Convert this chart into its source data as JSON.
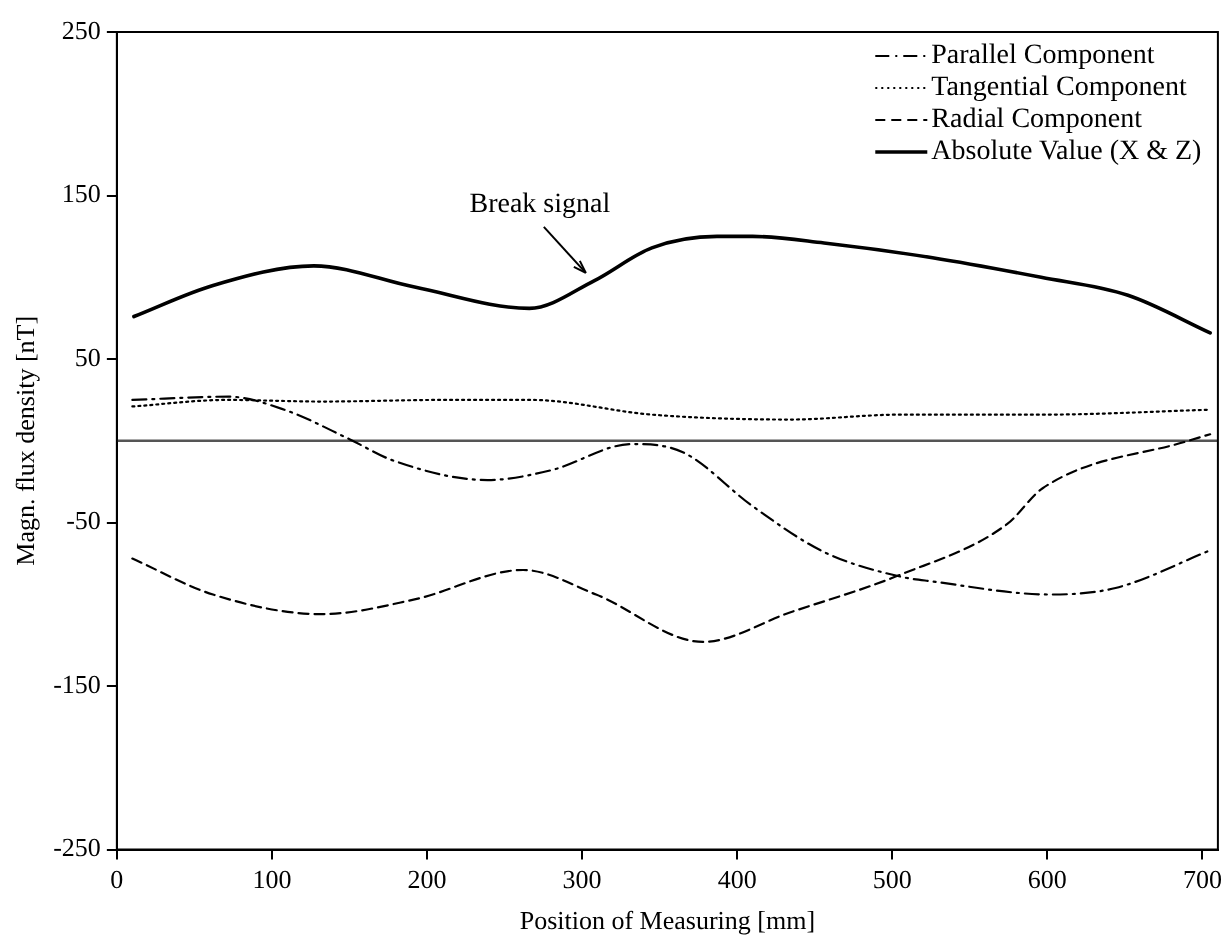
{
  "chart_data": {
    "type": "line",
    "xlabel": "Position of Measuring [mm]",
    "ylabel": "Magn. flux density [nT]",
    "xlim": [
      0,
      710
    ],
    "xticks": [
      0,
      100,
      200,
      300,
      400,
      500,
      600,
      700
    ],
    "ylim": [
      -250,
      250
    ],
    "yticks": [
      -250,
      -150,
      -50,
      50,
      150,
      250
    ],
    "grid": false,
    "legend": "top right",
    "marker": "none",
    "ref_lines": [
      {
        "axis": "y",
        "value": 0,
        "color": "#555555",
        "line_style": "solid"
      }
    ],
    "annotations": [
      {
        "text": "Break signal",
        "x": 305,
        "y": 99
      }
    ],
    "series": [
      {
        "name": "Parallel Component",
        "color": "#000000",
        "line_style": "dashdot",
        "x": [
          10,
          72,
          108,
          150,
          178,
          239,
          280,
          332,
          365,
          410,
          456,
          505,
          526,
          602,
          644,
          705
        ],
        "values": [
          25,
          27,
          19,
          1,
          -12,
          -24,
          -18,
          -2,
          -7,
          -40,
          -68,
          -83,
          -86,
          -94,
          -90,
          -67
        ]
      },
      {
        "name": "Tangential Component",
        "color": "#000000",
        "line_style": "dotted",
        "x": [
          10,
          71,
          132,
          211,
          267,
          345,
          434,
          505,
          597,
          705
        ],
        "values": [
          21,
          25,
          24,
          25,
          25,
          16,
          13,
          16,
          16,
          19
        ]
      },
      {
        "name": "Radial Component",
        "color": "#000000",
        "line_style": "dashed",
        "x": [
          10,
          62,
          132,
          192,
          262,
          309,
          378,
          434,
          505,
          574,
          597,
          691,
          705
        ],
        "values": [
          -72,
          -94,
          -106,
          -97,
          -79,
          -94,
          -123,
          -105,
          -82,
          -51,
          -29,
          0,
          4
        ]
      },
      {
        "name": "Absolute Value (X & Z)",
        "color": "#000000",
        "line_style": "solid",
        "x": [
          11,
          62,
          127,
          192,
          266,
          308,
          345,
          387,
          410,
          456,
          526,
          596,
          652,
          705
        ],
        "values": [
          76,
          95,
          107,
          94,
          81,
          98,
          118,
          125,
          125,
          121,
          112,
          100,
          89,
          66
        ]
      }
    ]
  }
}
